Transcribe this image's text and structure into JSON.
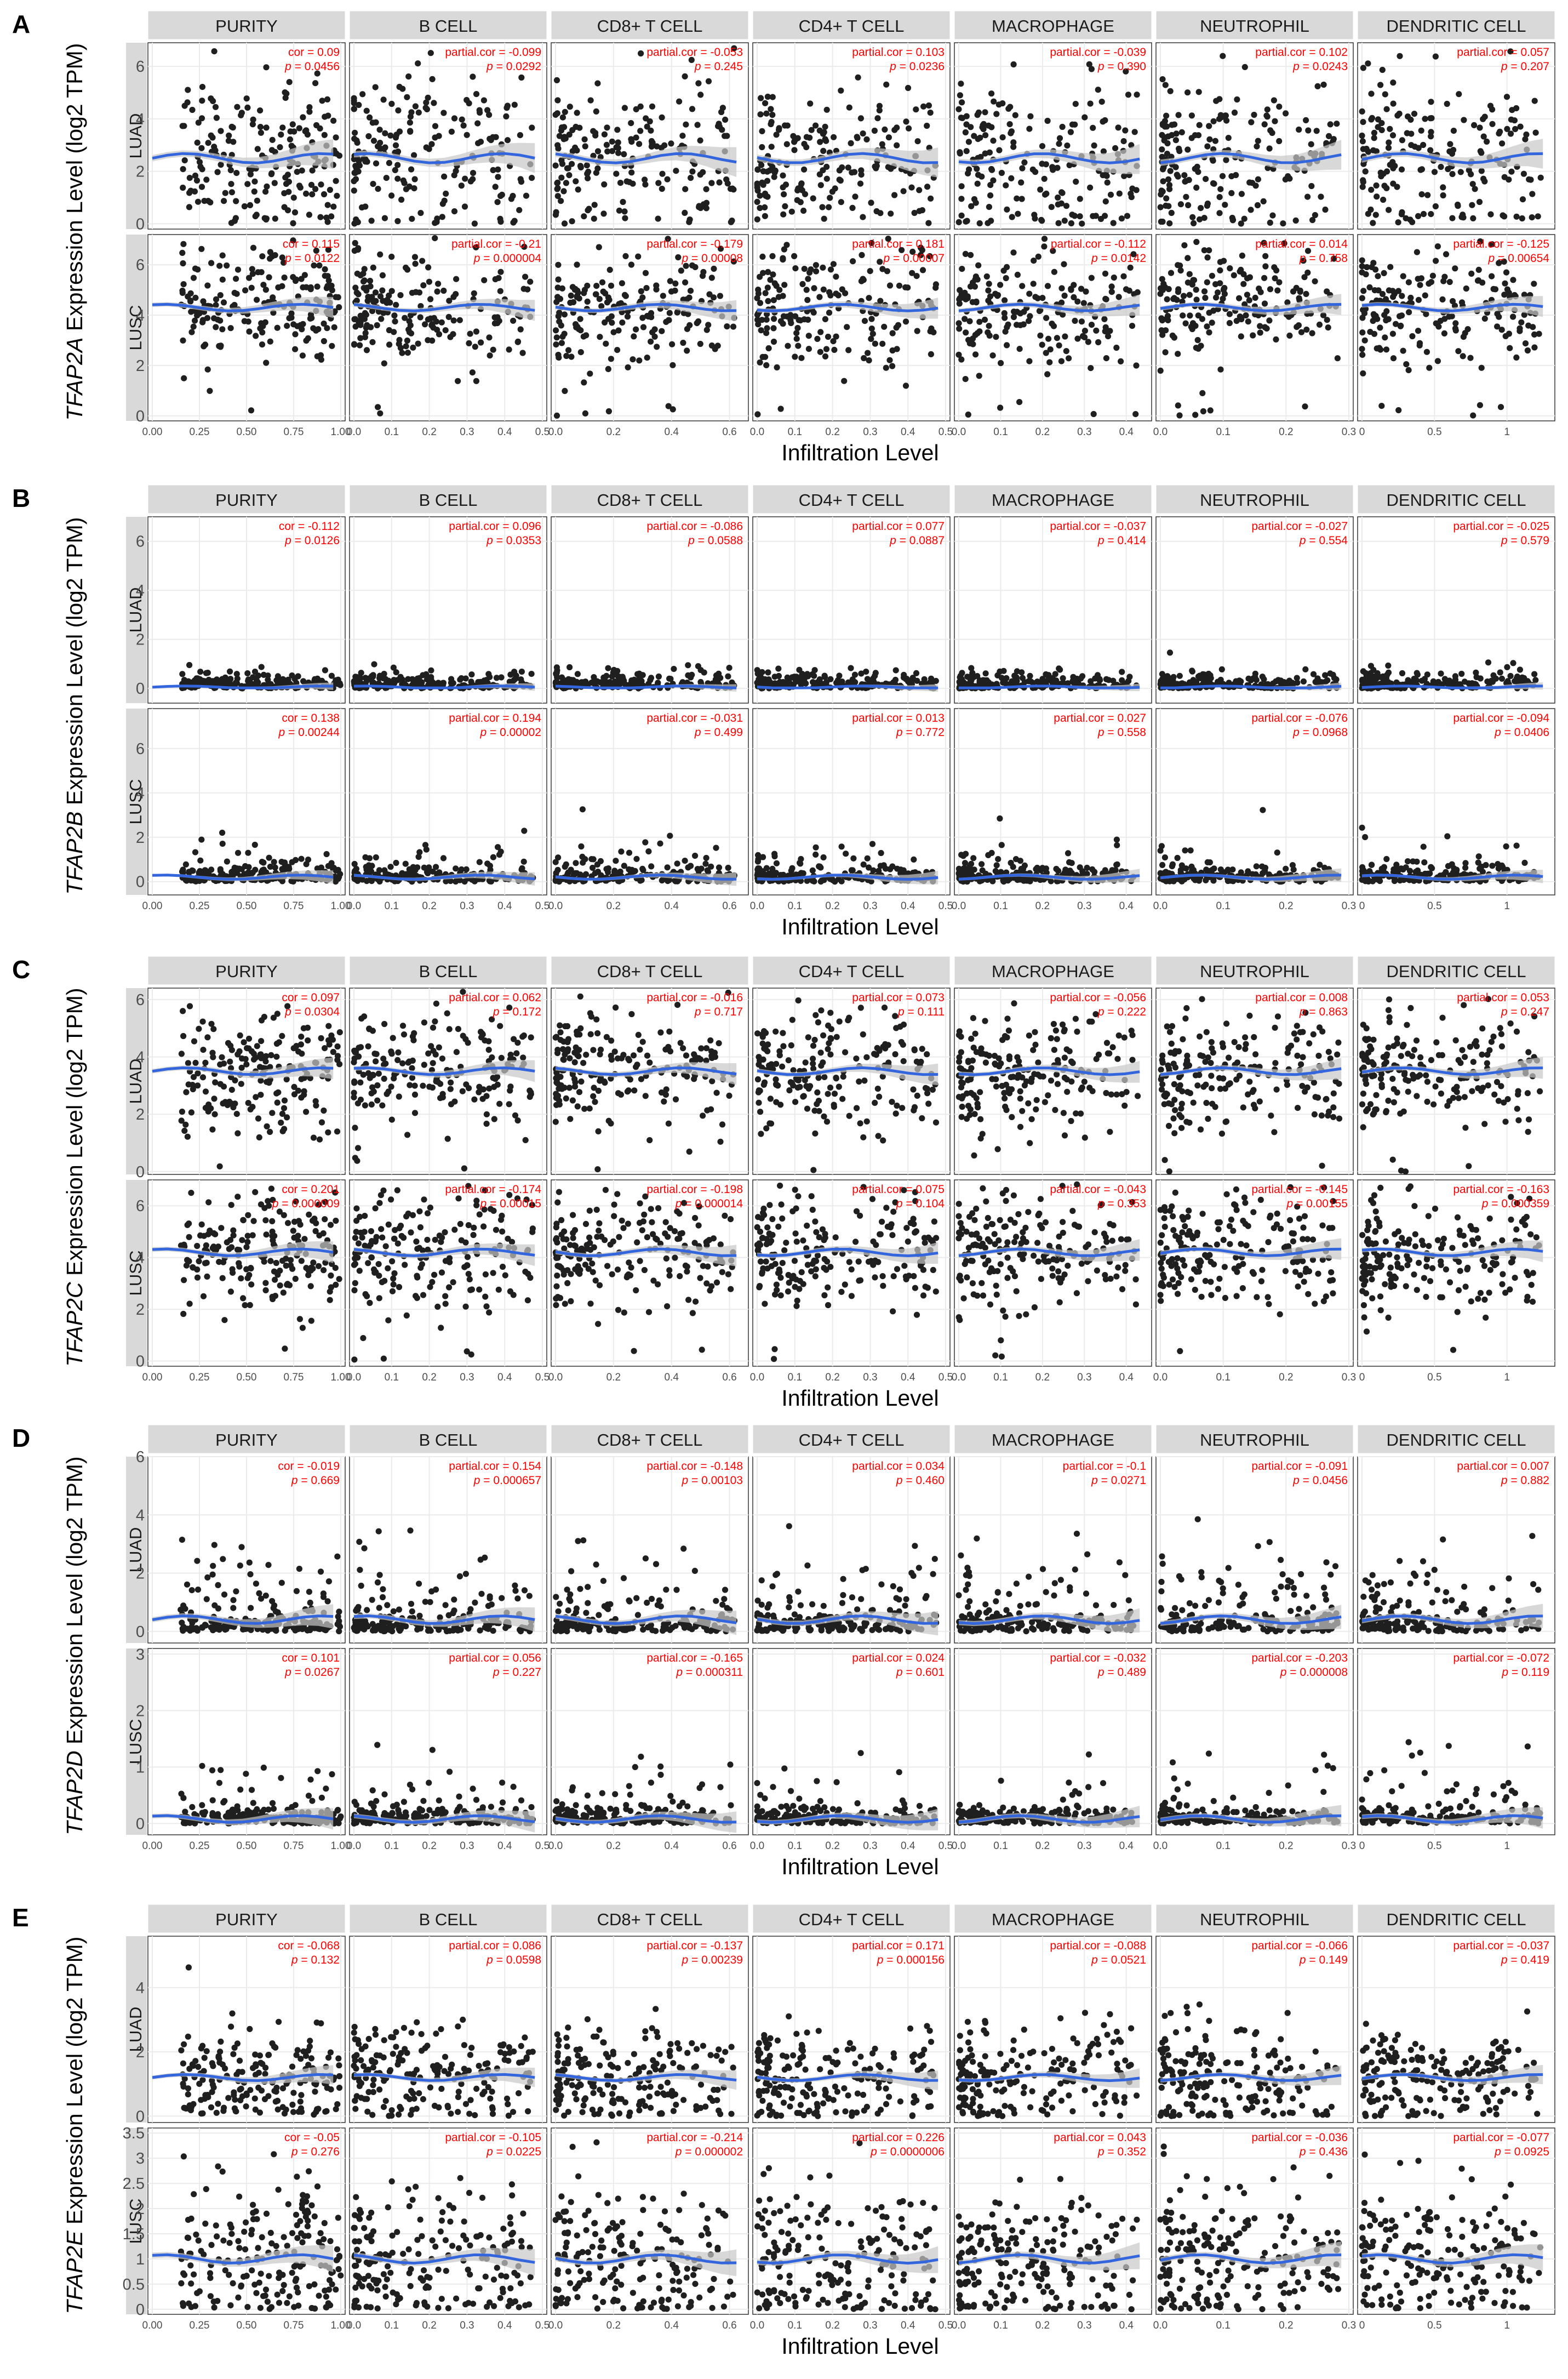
{
  "chart_data": {
    "type": "scatter",
    "layout": "faceted-grid",
    "x_label": "Infiltration Level",
    "y_label_suffix": " Expression Level (log2 TPM)",
    "columns": [
      {
        "name": "PURITY",
        "xlim": [
          0,
          1
        ],
        "ticks": [
          "0.00",
          "0.25",
          "0.50",
          "0.75",
          "1.00"
        ]
      },
      {
        "name": "B CELL",
        "xlim": [
          0,
          0.5
        ],
        "ticks": [
          "0.0",
          "0.1",
          "0.2",
          "0.3",
          "0.4",
          "0.5"
        ]
      },
      {
        "name": "CD8+ T CELL",
        "xlim": [
          0,
          0.65
        ],
        "ticks": [
          "0.0",
          "0.2",
          "0.4",
          "0.6"
        ]
      },
      {
        "name": "CD4+ T CELL",
        "xlim": [
          0,
          0.5
        ],
        "ticks": [
          "0.0",
          "0.1",
          "0.2",
          "0.3",
          "0.4",
          "0.5"
        ]
      },
      {
        "name": "MACROPHAGE",
        "xlim": [
          0,
          0.45
        ],
        "ticks": [
          "0.0",
          "0.1",
          "0.2",
          "0.3",
          "0.4"
        ]
      },
      {
        "name": "NEUTROPHIL",
        "xlim": [
          0,
          0.3
        ],
        "ticks": [
          "0.0",
          "0.1",
          "0.2",
          "0.3"
        ]
      },
      {
        "name": "DENDRITIC CELL",
        "xlim": [
          0,
          1.3
        ],
        "ticks": [
          "0",
          "0.5",
          "1"
        ]
      }
    ],
    "panels": [
      {
        "letter": "A",
        "gene": "TFAP2A",
        "rows": [
          {
            "name": "LUAD",
            "ylim": [
              -0.2,
              6.9
            ],
            "yticks": [
              "0",
              "2",
              "4",
              "6"
            ],
            "base": 2.5,
            "spread": 1.5,
            "zero_frac": 0.02,
            "stats": [
              {
                "label": "cor",
                "cor": "0.09",
                "p": "0.0456"
              },
              {
                "label": "partial.cor",
                "cor": "-0.099",
                "p": "0.0292"
              },
              {
                "label": "partial.cor",
                "cor": "-0.053",
                "p": "0.245"
              },
              {
                "label": "partial.cor",
                "cor": "0.103",
                "p": "0.0236"
              },
              {
                "label": "partial.cor",
                "cor": "-0.039",
                "p": "0.390"
              },
              {
                "label": "partial.cor",
                "cor": "0.102",
                "p": "0.0243"
              },
              {
                "label": "partial.cor",
                "cor": "0.057",
                "p": "0.207"
              }
            ]
          },
          {
            "name": "LUSC",
            "ylim": [
              -0.2,
              7.2
            ],
            "yticks": [
              "0",
              "2",
              "4",
              "6"
            ],
            "base": 4.3,
            "spread": 1.1,
            "zero_frac": 0.02,
            "stats": [
              {
                "label": "cor",
                "cor": "0.115",
                "p": "0.0122"
              },
              {
                "label": "partial.cor",
                "cor": "-0.21",
                "p": "0.000004"
              },
              {
                "label": "partial.cor",
                "cor": "-0.179",
                "p": "0.00008"
              },
              {
                "label": "partial.cor",
                "cor": "0.181",
                "p": "0.00007"
              },
              {
                "label": "partial.cor",
                "cor": "-0.112",
                "p": "0.0142"
              },
              {
                "label": "partial.cor",
                "cor": "0.014",
                "p": "0.758"
              },
              {
                "label": "partial.cor",
                "cor": "-0.125",
                "p": "0.00654"
              }
            ]
          }
        ]
      },
      {
        "letter": "B",
        "gene": "TFAP2B",
        "rows": [
          {
            "name": "LUAD",
            "ylim": [
              -0.6,
              7.0
            ],
            "yticks": [
              "0",
              "2",
              "4",
              "6"
            ],
            "base": 0.05,
            "spread": 0.4,
            "zero_frac": 0.7,
            "stats": [
              {
                "label": "cor",
                "cor": "-0.112",
                "p": "0.0126"
              },
              {
                "label": "partial.cor",
                "cor": "0.096",
                "p": "0.0353"
              },
              {
                "label": "partial.cor",
                "cor": "-0.086",
                "p": "0.0588"
              },
              {
                "label": "partial.cor",
                "cor": "0.077",
                "p": "0.0887"
              },
              {
                "label": "partial.cor",
                "cor": "-0.037",
                "p": "0.414"
              },
              {
                "label": "partial.cor",
                "cor": "-0.027",
                "p": "0.554"
              },
              {
                "label": "partial.cor",
                "cor": "-0.025",
                "p": "0.579"
              }
            ]
          },
          {
            "name": "LUSC",
            "ylim": [
              -0.6,
              7.8
            ],
            "yticks": [
              "0",
              "2",
              "4",
              "6"
            ],
            "base": 0.2,
            "spread": 0.8,
            "zero_frac": 0.6,
            "stats": [
              {
                "label": "cor",
                "cor": "0.138",
                "p": "0.00244"
              },
              {
                "label": "partial.cor",
                "cor": "0.194",
                "p": "0.00002"
              },
              {
                "label": "partial.cor",
                "cor": "-0.031",
                "p": "0.499"
              },
              {
                "label": "partial.cor",
                "cor": "0.013",
                "p": "0.772"
              },
              {
                "label": "partial.cor",
                "cor": "0.027",
                "p": "0.558"
              },
              {
                "label": "partial.cor",
                "cor": "-0.076",
                "p": "0.0968"
              },
              {
                "label": "partial.cor",
                "cor": "-0.094",
                "p": "0.0406"
              }
            ]
          }
        ]
      },
      {
        "letter": "C",
        "gene": "TFAP2C",
        "rows": [
          {
            "name": "LUAD",
            "ylim": [
              -0.1,
              6.4
            ],
            "yticks": [
              "0",
              "2",
              "4",
              "6"
            ],
            "base": 3.5,
            "spread": 1.0,
            "zero_frac": 0.01,
            "stats": [
              {
                "label": "cor",
                "cor": "0.097",
                "p": "0.0304"
              },
              {
                "label": "partial.cor",
                "cor": "0.062",
                "p": "0.172"
              },
              {
                "label": "partial.cor",
                "cor": "-0.016",
                "p": "0.717"
              },
              {
                "label": "partial.cor",
                "cor": "0.073",
                "p": "0.111"
              },
              {
                "label": "partial.cor",
                "cor": "-0.056",
                "p": "0.222"
              },
              {
                "label": "partial.cor",
                "cor": "0.008",
                "p": "0.863"
              },
              {
                "label": "partial.cor",
                "cor": "0.053",
                "p": "0.247"
              }
            ]
          },
          {
            "name": "LUSC",
            "ylim": [
              -0.2,
              7.0
            ],
            "yticks": [
              "0",
              "2",
              "4",
              "6"
            ],
            "base": 4.2,
            "spread": 1.1,
            "zero_frac": 0.01,
            "stats": [
              {
                "label": "cor",
                "cor": "0.201",
                "p": "0.000009"
              },
              {
                "label": "partial.cor",
                "cor": "-0.174",
                "p": "0.00015"
              },
              {
                "label": "partial.cor",
                "cor": "-0.198",
                "p": "0.000014"
              },
              {
                "label": "partial.cor",
                "cor": "0.075",
                "p": "0.104"
              },
              {
                "label": "partial.cor",
                "cor": "-0.043",
                "p": "0.353"
              },
              {
                "label": "partial.cor",
                "cor": "-0.145",
                "p": "0.00155"
              },
              {
                "label": "partial.cor",
                "cor": "-0.163",
                "p": "0.000359"
              }
            ]
          }
        ]
      },
      {
        "letter": "D",
        "gene": "TFAP2D",
        "rows": [
          {
            "name": "LUAD",
            "ylim": [
              -0.4,
              6.0
            ],
            "yticks": [
              "0",
              "2",
              "4",
              "6"
            ],
            "base": 0.4,
            "spread": 1.1,
            "zero_frac": 0.45,
            "stats": [
              {
                "label": "cor",
                "cor": "-0.019",
                "p": "0.669"
              },
              {
                "label": "partial.cor",
                "cor": "0.154",
                "p": "0.000657"
              },
              {
                "label": "partial.cor",
                "cor": "-0.148",
                "p": "0.00103"
              },
              {
                "label": "partial.cor",
                "cor": "0.034",
                "p": "0.460"
              },
              {
                "label": "partial.cor",
                "cor": "-0.1",
                "p": "0.0271"
              },
              {
                "label": "partial.cor",
                "cor": "-0.091",
                "p": "0.0456"
              },
              {
                "label": "partial.cor",
                "cor": "0.007",
                "p": "0.882"
              }
            ]
          },
          {
            "name": "LUSC",
            "ylim": [
              -0.2,
              3.1
            ],
            "yticks": [
              "0",
              "1",
              "2",
              "3"
            ],
            "base": 0.08,
            "spread": 0.5,
            "zero_frac": 0.65,
            "stats": [
              {
                "label": "cor",
                "cor": "0.101",
                "p": "0.0267"
              },
              {
                "label": "partial.cor",
                "cor": "0.056",
                "p": "0.227"
              },
              {
                "label": "partial.cor",
                "cor": "-0.165",
                "p": "0.000311"
              },
              {
                "label": "partial.cor",
                "cor": "0.024",
                "p": "0.601"
              },
              {
                "label": "partial.cor",
                "cor": "-0.032",
                "p": "0.489"
              },
              {
                "label": "partial.cor",
                "cor": "-0.203",
                "p": "0.000008"
              },
              {
                "label": "partial.cor",
                "cor": "-0.072",
                "p": "0.119"
              }
            ]
          }
        ]
      },
      {
        "letter": "E",
        "gene": "TFAP2E",
        "rows": [
          {
            "name": "LUAD",
            "ylim": [
              -0.2,
              5.6
            ],
            "yticks": [
              "0",
              "2",
              "4"
            ],
            "base": 1.2,
            "spread": 0.8,
            "zero_frac": 0.02,
            "stats": [
              {
                "label": "cor",
                "cor": "-0.068",
                "p": "0.132"
              },
              {
                "label": "partial.cor",
                "cor": "0.086",
                "p": "0.0598"
              },
              {
                "label": "partial.cor",
                "cor": "-0.137",
                "p": "0.00239"
              },
              {
                "label": "partial.cor",
                "cor": "0.171",
                "p": "0.000156"
              },
              {
                "label": "partial.cor",
                "cor": "-0.088",
                "p": "0.0521"
              },
              {
                "label": "partial.cor",
                "cor": "-0.066",
                "p": "0.149"
              },
              {
                "label": "partial.cor",
                "cor": "-0.037",
                "p": "0.419"
              }
            ]
          },
          {
            "name": "LUSC",
            "ylim": [
              -0.1,
              3.6
            ],
            "yticks": [
              "0",
              "0.5",
              "1",
              "1.5",
              "2",
              "2.5",
              "3",
              "3.5"
            ],
            "base": 1.0,
            "spread": 0.7,
            "zero_frac": 0.02,
            "stats": [
              {
                "label": "cor",
                "cor": "-0.05",
                "p": "0.276"
              },
              {
                "label": "partial.cor",
                "cor": "-0.105",
                "p": "0.0225"
              },
              {
                "label": "partial.cor",
                "cor": "-0.214",
                "p": "0.000002"
              },
              {
                "label": "partial.cor",
                "cor": "0.226",
                "p": "0.0000006"
              },
              {
                "label": "partial.cor",
                "cor": "0.043",
                "p": "0.352"
              },
              {
                "label": "partial.cor",
                "cor": "-0.036",
                "p": "0.436"
              },
              {
                "label": "partial.cor",
                "cor": "-0.077",
                "p": "0.0925"
              }
            ]
          }
        ]
      }
    ]
  },
  "colors": {
    "point": "#1f1f1f",
    "trend": "#3366dd",
    "band": "#c8c8c8",
    "strip_bg": "#d9d9d9",
    "grid": "#ebebeb",
    "annotation": "#ff0000"
  }
}
